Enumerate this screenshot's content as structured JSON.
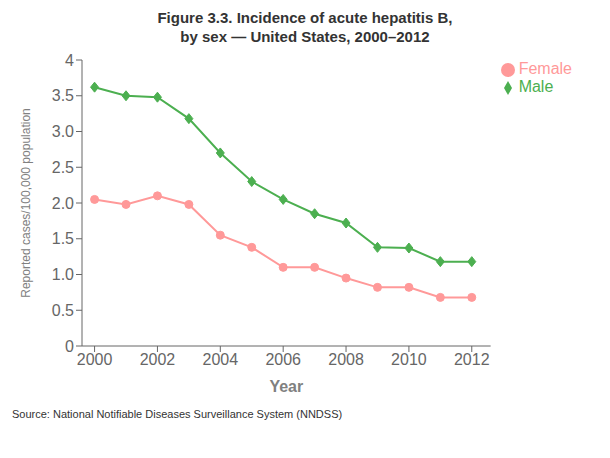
{
  "chart_data": {
    "type": "line",
    "title": "Figure 3.3. Incidence of acute hepatitis B,",
    "subtitle": "by sex — United States, 2000–2012",
    "xlabel": "Year",
    "ylabel": "Reported cases/100,000 population",
    "x": [
      2000,
      2001,
      2002,
      2003,
      2004,
      2005,
      2006,
      2007,
      2008,
      2009,
      2010,
      2011,
      2012
    ],
    "xlim": [
      1999.6,
      2012.6
    ],
    "xticks": [
      2000,
      2002,
      2004,
      2006,
      2008,
      2010,
      2012
    ],
    "ylim": [
      0,
      4.0
    ],
    "yticks": [
      0,
      0.5,
      {
        "value": 1.0,
        "label": "1.0"
      },
      {
        "value": 1.5,
        "label": "1.5"
      },
      {
        "value": 2.0,
        "label": "2.0"
      },
      {
        "value": 2.5,
        "label": "2.5"
      },
      {
        "value": 3.0,
        "label": "3.0"
      },
      {
        "value": 3.5,
        "label": "3.5"
      },
      4
    ],
    "series": [
      {
        "name": "Male",
        "color": "#4CAF50",
        "marker": "diamond",
        "values": [
          3.62,
          3.5,
          3.48,
          3.18,
          2.7,
          2.3,
          2.05,
          1.85,
          1.72,
          1.38,
          1.37,
          1.18,
          1.18
        ]
      },
      {
        "name": "Female",
        "color": "#FF9999",
        "marker": "circle",
        "values": [
          2.05,
          1.98,
          2.1,
          1.98,
          1.55,
          1.38,
          1.1,
          1.1,
          0.95,
          0.82,
          0.82,
          0.68,
          0.68
        ]
      }
    ],
    "legend": "upper right",
    "grid": false,
    "annotations": [
      "Source: National Notifiable Diseases Surveillance System (NNDSS)"
    ]
  }
}
